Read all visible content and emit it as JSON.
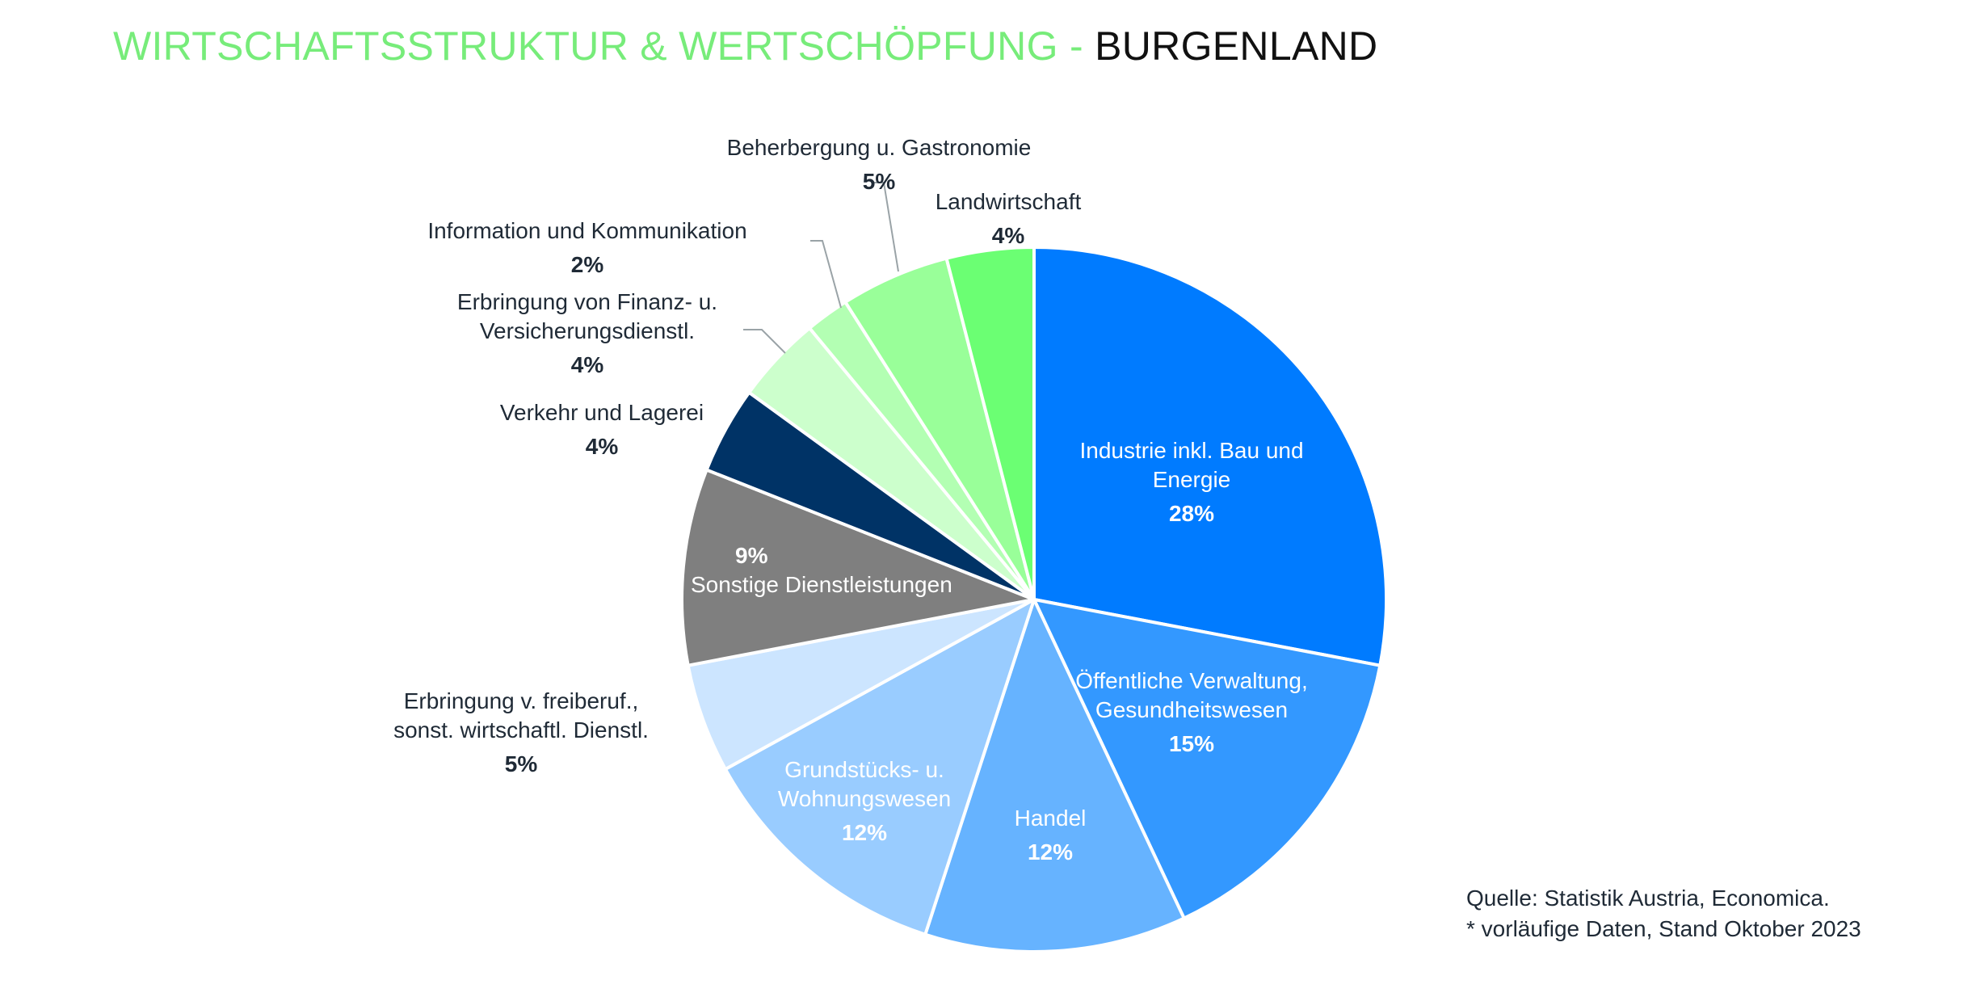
{
  "header": {
    "title_part1": "WIRTSCHAFTSSTRUKTUR & WERTSCHÖPFUNG - ",
    "title_part2": "BURGENLAND"
  },
  "chart_data": {
    "type": "pie",
    "slices": [
      {
        "label_lines": [
          "Industrie inkl. Bau und",
          "Energie"
        ],
        "value": 28,
        "value_label": "28%",
        "color": "#007bff"
      },
      {
        "label_lines": [
          "Öffentliche Verwaltung,",
          "Gesundheitswesen"
        ],
        "value": 15,
        "value_label": "15%",
        "color": "#3398ff"
      },
      {
        "label_lines": [
          "Handel"
        ],
        "value": 12,
        "value_label": "12%",
        "color": "#66b3ff"
      },
      {
        "label_lines": [
          "Grundstücks- u.",
          "Wohnungswesen"
        ],
        "value": 12,
        "value_label": "12%",
        "color": "#99ccff"
      },
      {
        "label_lines": [
          "Erbringung v. freiberuf.,",
          "sonst. wirtschaftl. Dienstl."
        ],
        "value": 5,
        "value_label": "5%",
        "color": "#cce5ff"
      },
      {
        "label_lines": [
          "Sonstige Dienstleistungen"
        ],
        "value": 9,
        "value_label": "9%",
        "color": "#7f7f7f"
      },
      {
        "label_lines": [
          "Verkehr und Lagerei"
        ],
        "value": 4,
        "value_label": "4%",
        "color": "#003366"
      },
      {
        "label_lines": [
          "Erbringung von Finanz- u.",
          "Versicherungsdienstl."
        ],
        "value": 4,
        "value_label": "4%",
        "color": "#ccffcc"
      },
      {
        "label_lines": [
          "Information und Kommunikation"
        ],
        "value": 2,
        "value_label": "2%",
        "color": "#b3ffb3"
      },
      {
        "label_lines": [
          "Beherbergung u. Gastronomie"
        ],
        "value": 5,
        "value_label": "5%",
        "color": "#99ff99"
      },
      {
        "label_lines": [
          "Landwirtschaft"
        ],
        "value": 4,
        "value_label": "4%",
        "color": "#6bff73"
      }
    ]
  },
  "footer": {
    "source_line1": "Quelle: Statistik Austria, Economica.",
    "source_line2": "* vorläufige Daten, Stand Oktober 2023"
  }
}
